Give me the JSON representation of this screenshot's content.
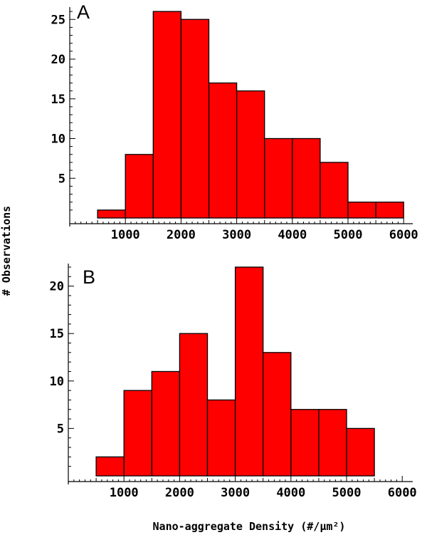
{
  "chart_data": [
    {
      "type": "bar",
      "panel_label": "A",
      "bin_edges": [
        500,
        1000,
        1500,
        2000,
        2500,
        3000,
        3500,
        4000,
        4500,
        5000,
        5500,
        6000
      ],
      "values": [
        1,
        8,
        26,
        25,
        17,
        16,
        10,
        10,
        7,
        2,
        2
      ],
      "xlim": [
        0,
        6000
      ],
      "ylim": [
        0,
        26
      ],
      "x_ticks": [
        1000,
        2000,
        3000,
        4000,
        5000,
        6000
      ],
      "y_ticks": [
        5,
        10,
        15,
        20,
        25
      ],
      "bar_color": "#ff0000"
    },
    {
      "type": "bar",
      "panel_label": "B",
      "bin_edges": [
        500,
        1000,
        1500,
        2000,
        2500,
        3000,
        3500,
        4000,
        4500,
        5000,
        5500
      ],
      "values": [
        2,
        9,
        11,
        15,
        8,
        22,
        13,
        7,
        7,
        5
      ],
      "xlim": [
        0,
        6000
      ],
      "ylim": [
        0,
        22
      ],
      "x_ticks": [
        1000,
        2000,
        3000,
        4000,
        5000,
        6000
      ],
      "y_ticks": [
        5,
        10,
        15,
        20
      ],
      "bar_color": "#ff0000"
    }
  ],
  "ylabel": "# Observations",
  "xlabel": "Nano-aggregate Density (#/μm²)"
}
